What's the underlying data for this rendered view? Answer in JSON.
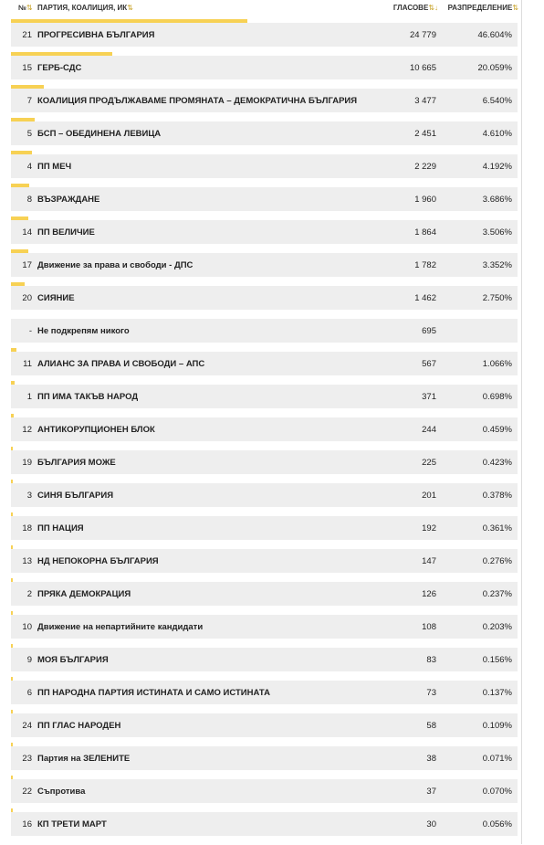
{
  "header": {
    "num": "№",
    "party": "ПАРТИЯ, КОАЛИЦИЯ, ИК",
    "votes": "ГЛАСОВЕ",
    "distribution": "РАЗПРЕДЕЛЕНИЕ",
    "sort_icon": "⇅",
    "sort_active_icon": "⇅↓"
  },
  "colors": {
    "bar": "#f7d154",
    "row_bg": "#eeeeee",
    "sort_icon": "#c9a52c"
  },
  "rows": [
    {
      "num": "21",
      "party": "ПРОГРЕСИВНА БЪЛГАРИЯ",
      "votes": "24 779",
      "share": "46.604%",
      "bar": 46.604
    },
    {
      "num": "15",
      "party": "ГЕРБ-СДС",
      "votes": "10 665",
      "share": "20.059%",
      "bar": 20.059
    },
    {
      "num": "7",
      "party": "КОАЛИЦИЯ ПРОДЪЛЖАВАМЕ ПРОМЯНАТА – ДЕМОКРАТИЧНА БЪЛГАРИЯ",
      "votes": "3 477",
      "share": "6.540%",
      "bar": 6.54
    },
    {
      "num": "5",
      "party": "БСП – ОБЕДИНЕНА ЛЕВИЦА",
      "votes": "2 451",
      "share": "4.610%",
      "bar": 4.61
    },
    {
      "num": "4",
      "party": "ПП МЕЧ",
      "votes": "2 229",
      "share": "4.192%",
      "bar": 4.192
    },
    {
      "num": "8",
      "party": "ВЪЗРАЖДАНЕ",
      "votes": "1 960",
      "share": "3.686%",
      "bar": 3.686
    },
    {
      "num": "14",
      "party": "ПП ВЕЛИЧИЕ",
      "votes": "1 864",
      "share": "3.506%",
      "bar": 3.506
    },
    {
      "num": "17",
      "party": "Движение за права и свободи - ДПС",
      "votes": "1 782",
      "share": "3.352%",
      "bar": 3.352
    },
    {
      "num": "20",
      "party": "СИЯНИЕ",
      "votes": "1 462",
      "share": "2.750%",
      "bar": 2.75
    },
    {
      "num": "-",
      "party": "Не подкрепям никого",
      "votes": "695",
      "share": "",
      "bar": 0
    },
    {
      "num": "11",
      "party": "АЛИАНС ЗА ПРАВА И СВОБОДИ – АПС",
      "votes": "567",
      "share": "1.066%",
      "bar": 1.066
    },
    {
      "num": "1",
      "party": "ПП ИМА ТАКЪВ НАРОД",
      "votes": "371",
      "share": "0.698%",
      "bar": 0.698
    },
    {
      "num": "12",
      "party": "АНТИКОРУПЦИОНЕН БЛОК",
      "votes": "244",
      "share": "0.459%",
      "bar": 0.459
    },
    {
      "num": "19",
      "party": "БЪЛГАРИЯ МОЖЕ",
      "votes": "225",
      "share": "0.423%",
      "bar": 0.423
    },
    {
      "num": "3",
      "party": "СИНЯ БЪЛГАРИЯ",
      "votes": "201",
      "share": "0.378%",
      "bar": 0.378
    },
    {
      "num": "18",
      "party": "ПП НАЦИЯ",
      "votes": "192",
      "share": "0.361%",
      "bar": 0.361
    },
    {
      "num": "13",
      "party": "НД НЕПОКОРНА БЪЛГАРИЯ",
      "votes": "147",
      "share": "0.276%",
      "bar": 0.276
    },
    {
      "num": "2",
      "party": "ПРЯКА ДЕМОКРАЦИЯ",
      "votes": "126",
      "share": "0.237%",
      "bar": 0.237
    },
    {
      "num": "10",
      "party": "Движение на непартийните кандидати",
      "votes": "108",
      "share": "0.203%",
      "bar": 0.203
    },
    {
      "num": "9",
      "party": "МОЯ БЪЛГАРИЯ",
      "votes": "83",
      "share": "0.156%",
      "bar": 0.156
    },
    {
      "num": "6",
      "party": "ПП НАРОДНА ПАРТИЯ ИСТИНАТА И САМО ИСТИНАТА",
      "votes": "73",
      "share": "0.137%",
      "bar": 0.137
    },
    {
      "num": "24",
      "party": "ПП ГЛАС НАРОДЕН",
      "votes": "58",
      "share": "0.109%",
      "bar": 0.109
    },
    {
      "num": "23",
      "party": "Партия на ЗЕЛЕНИТЕ",
      "votes": "38",
      "share": "0.071%",
      "bar": 0.071
    },
    {
      "num": "22",
      "party": "Съпротива",
      "votes": "37",
      "share": "0.070%",
      "bar": 0.07
    },
    {
      "num": "16",
      "party": "КП ТРЕТИ МАРТ",
      "votes": "30",
      "share": "0.056%",
      "bar": 0.056
    }
  ]
}
